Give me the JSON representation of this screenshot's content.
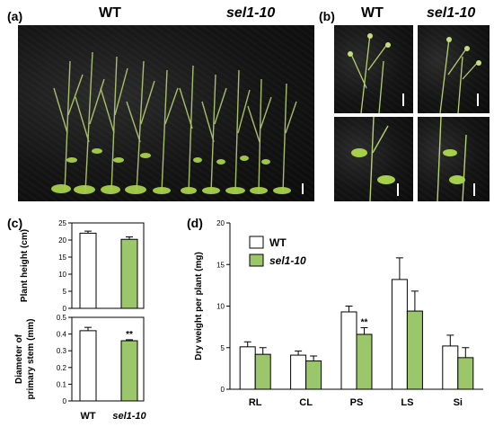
{
  "panels": {
    "a": {
      "label": "(a)",
      "group_wt": "WT",
      "group_mutant": "sel1-10"
    },
    "b": {
      "label": "(b)",
      "group_wt": "WT",
      "group_mutant": "sel1-10"
    },
    "c": {
      "label": "(c)"
    },
    "d": {
      "label": "(d)"
    }
  },
  "colors": {
    "wt_bar": "#ffffff",
    "mutant_bar": "#9cc66a",
    "stroke": "#000000"
  },
  "chart_data": [
    {
      "id": "panel-c-top",
      "type": "bar",
      "categories": [
        "WT",
        "sel1-10"
      ],
      "values": [
        22.0,
        20.2
      ],
      "errors": [
        0.6,
        0.7
      ],
      "ylabel": "Plant height (cm)",
      "ylim": [
        0,
        25
      ],
      "yticks": [
        0,
        5,
        10,
        15,
        20,
        25
      ],
      "significance": [
        "",
        ""
      ]
    },
    {
      "id": "panel-c-bottom",
      "type": "bar",
      "categories": [
        "WT",
        "sel1-10"
      ],
      "values": [
        0.42,
        0.36
      ],
      "errors": [
        0.02,
        0.006
      ],
      "ylabel": "Diameter of primary stem (mm)",
      "ylabel_lines": [
        "Diameter of",
        "primary stem (mm)"
      ],
      "ylim": [
        0,
        0.5
      ],
      "yticks": [
        "0",
        "0.1",
        "0.2",
        "0.3",
        "0.4",
        "0.5"
      ],
      "significance": [
        "",
        "**"
      ]
    },
    {
      "id": "panel-d",
      "type": "bar",
      "categories": [
        "RL",
        "CL",
        "PS",
        "LS",
        "Si"
      ],
      "series": [
        {
          "name": "WT",
          "values": [
            5.1,
            4.1,
            9.3,
            13.2,
            5.2
          ],
          "errors": [
            0.6,
            0.5,
            0.7,
            2.6,
            1.3
          ]
        },
        {
          "name": "sel1-10",
          "values": [
            4.2,
            3.4,
            6.6,
            9.4,
            3.8
          ],
          "errors": [
            0.8,
            0.6,
            0.8,
            2.4,
            1.2
          ]
        }
      ],
      "significance": [
        "",
        "",
        "**",
        "",
        ""
      ],
      "ylabel": "Dry weight per plant  (mg)",
      "ylim": [
        0,
        20
      ],
      "yticks": [
        0,
        5,
        10,
        15,
        20
      ],
      "legend": "top-left"
    }
  ]
}
